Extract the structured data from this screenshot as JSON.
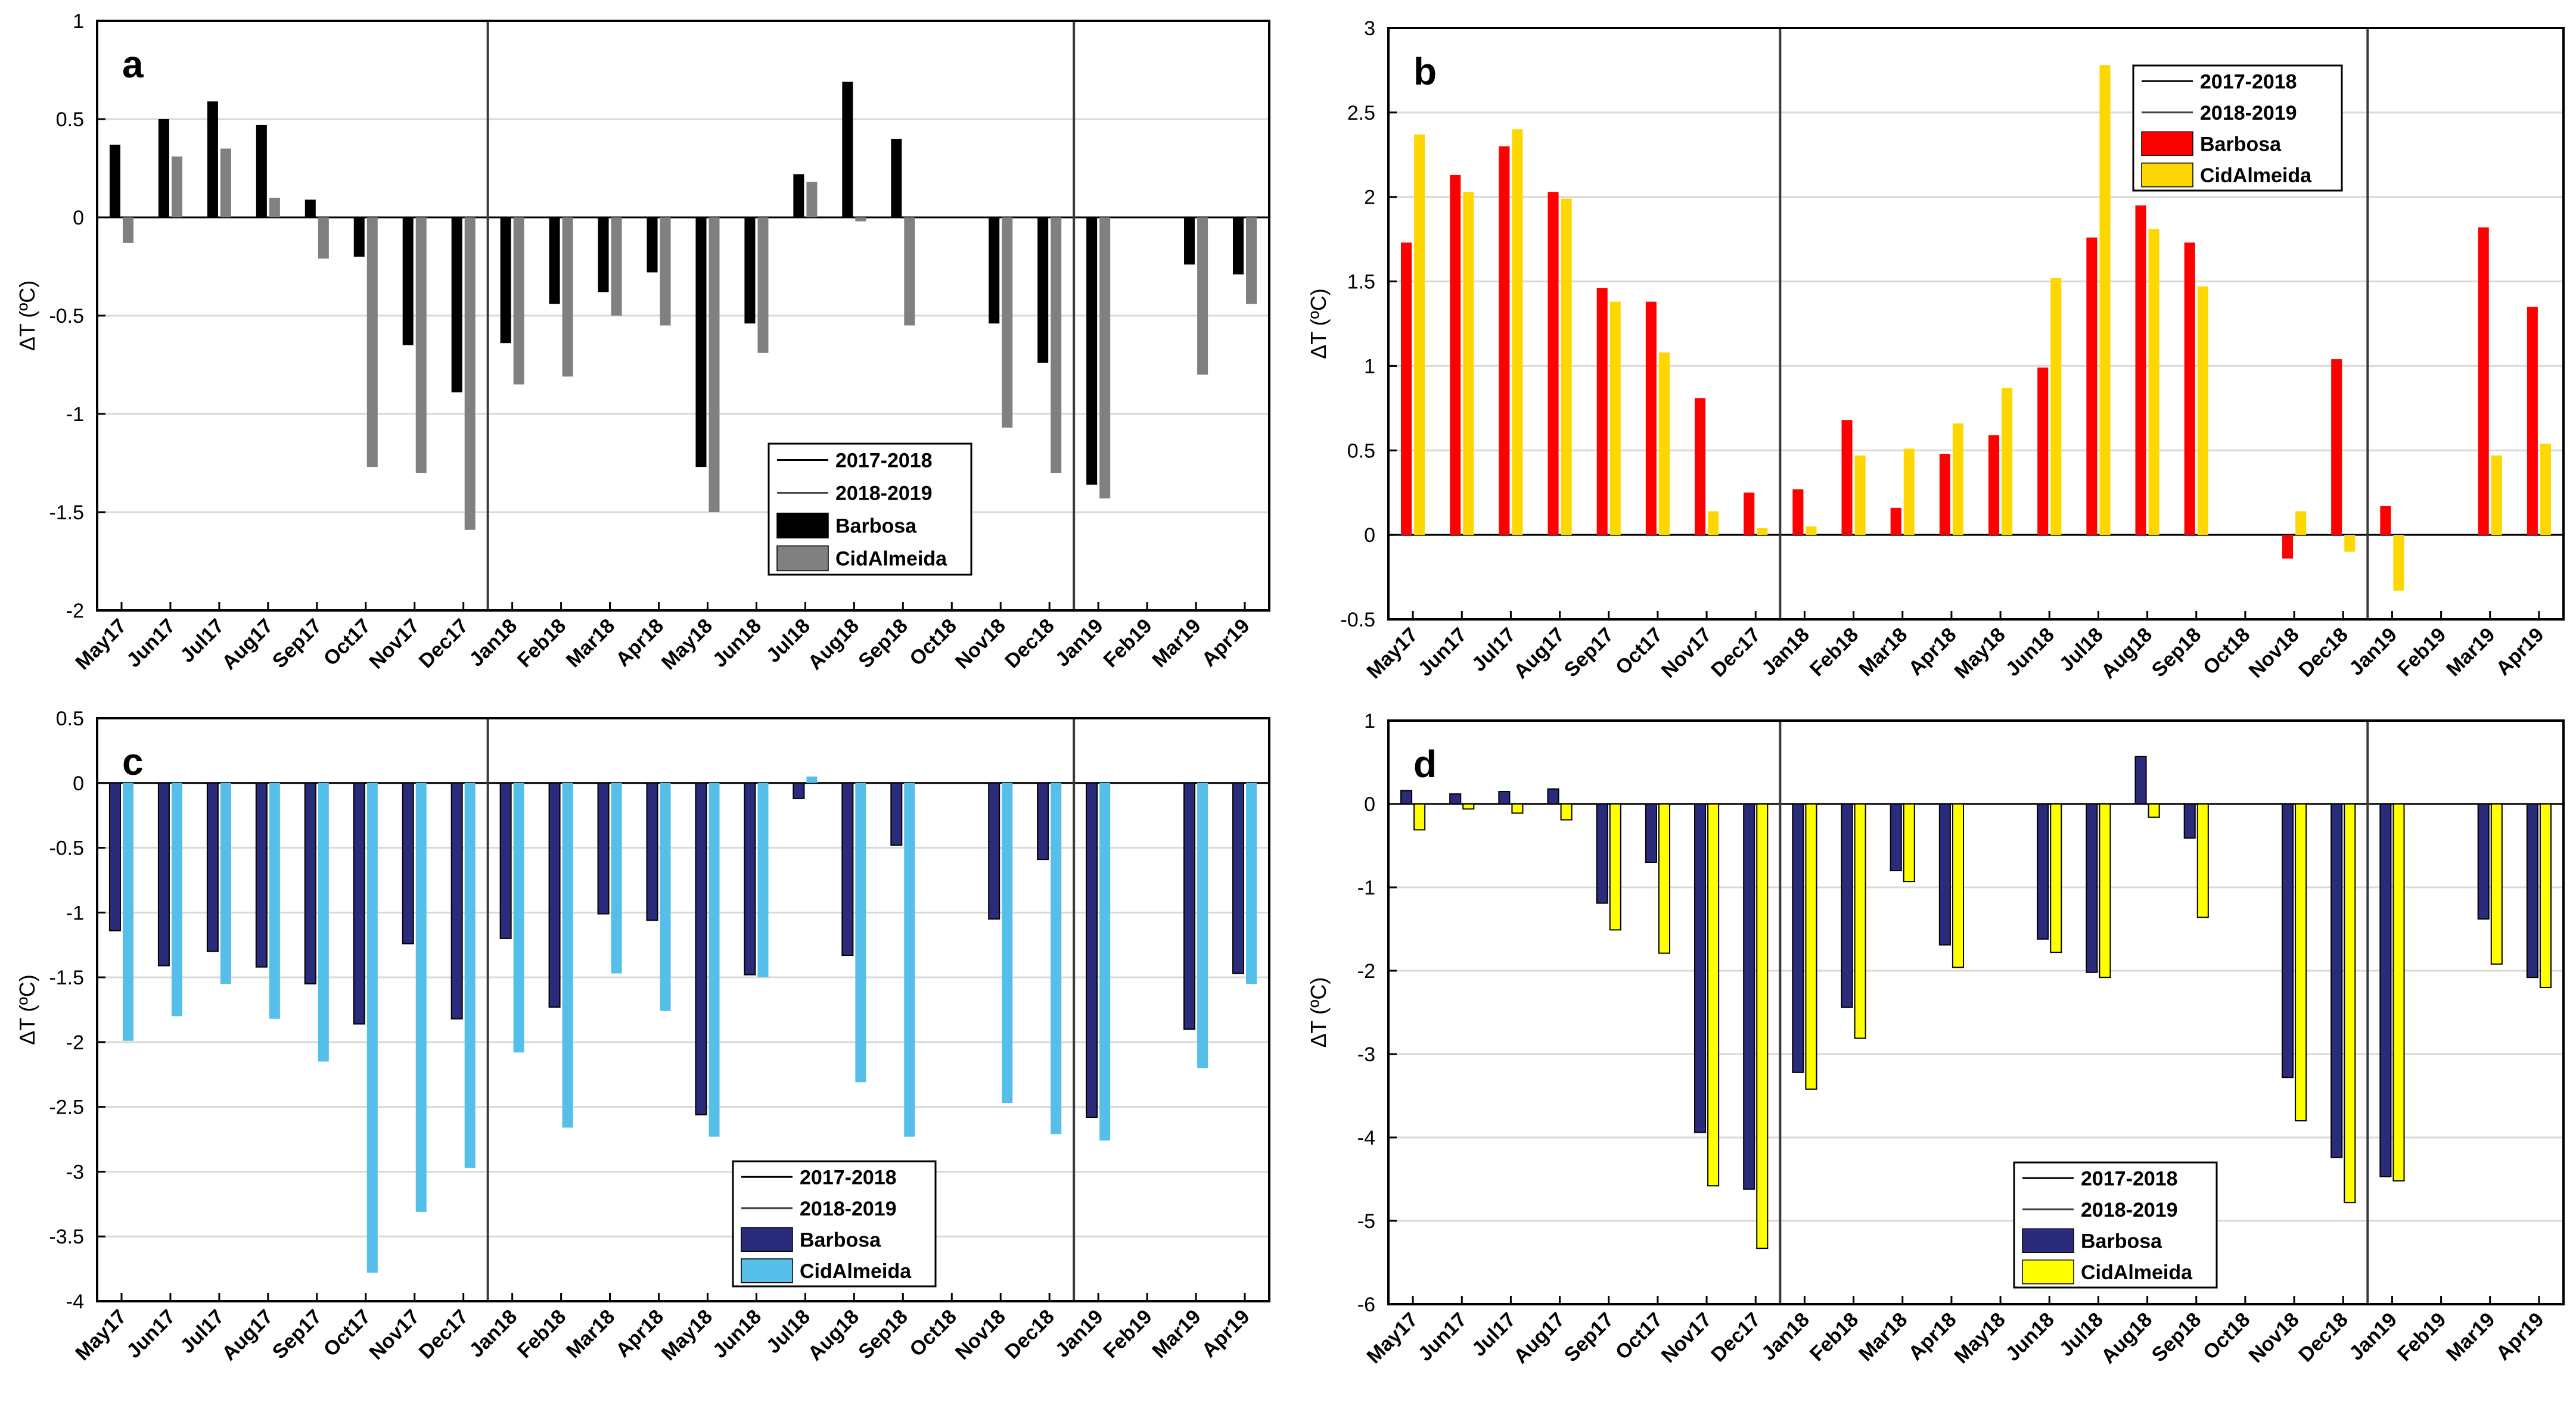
{
  "chart_data": [
    {
      "panel": "a",
      "type": "bar",
      "ylabel": "ΔT (ºC)",
      "ylim": [
        -2,
        1
      ],
      "yticks": [
        -2,
        -1.5,
        -1,
        -0.5,
        0,
        0.5,
        1
      ],
      "categories": [
        "May17",
        "Jun17",
        "Jul17",
        "Aug17",
        "Sep17",
        "Oct17",
        "Nov17",
        "Dec17",
        "Jan18",
        "Feb18",
        "Mar18",
        "Apr18",
        "May18",
        "Jun18",
        "Jul18",
        "Aug18",
        "Sep18",
        "Oct18",
        "Nov18",
        "Dec18",
        "Jan19",
        "Feb19",
        "Mar19",
        "Apr19"
      ],
      "series": [
        {
          "name": "Barbosa",
          "color": "#000000",
          "values": [
            0.37,
            0.5,
            0.59,
            0.47,
            0.09,
            -0.2,
            -0.65,
            -0.89,
            -0.64,
            -0.44,
            -0.38,
            -0.28,
            -1.27,
            -0.54,
            0.22,
            0.69,
            0.4,
            null,
            -0.54,
            -0.74,
            -1.36,
            null,
            -0.24,
            -0.29
          ]
        },
        {
          "name": "CidAlmeida",
          "color": "#808080",
          "values": [
            -0.13,
            0.31,
            0.35,
            0.1,
            -0.21,
            -1.27,
            -1.3,
            -1.59,
            -0.85,
            -0.81,
            -0.5,
            -0.55,
            -1.5,
            -0.69,
            0.18,
            -0.02,
            -0.55,
            null,
            -1.07,
            -1.3,
            -1.43,
            null,
            -0.8,
            -0.44
          ]
        }
      ],
      "legend_lines": [
        "2017-2018",
        "2018-2019"
      ],
      "legend_position": "lower-right",
      "grid": "horizontal",
      "divider_positions": [
        "Dec17|Jan18",
        "Dec18|Jan19"
      ]
    },
    {
      "panel": "b",
      "type": "bar",
      "ylabel": "ΔT (ºC)",
      "ylim": [
        -0.5,
        3
      ],
      "yticks": [
        -0.5,
        0,
        0.5,
        1,
        1.5,
        2,
        2.5,
        3
      ],
      "categories": [
        "May17",
        "Jun17",
        "Jul17",
        "Aug17",
        "Sep17",
        "Oct17",
        "Nov17",
        "Dec17",
        "Jan18",
        "Feb18",
        "Mar18",
        "Apr18",
        "May18",
        "Jun18",
        "Jul18",
        "Aug18",
        "Sep18",
        "Oct18",
        "Nov18",
        "Dec18",
        "Jan19",
        "Feb19",
        "Mar19",
        "Apr19"
      ],
      "series": [
        {
          "name": "Barbosa",
          "color": "#ff0000",
          "values": [
            1.73,
            2.13,
            2.3,
            2.03,
            1.46,
            1.38,
            0.81,
            0.25,
            0.27,
            0.68,
            0.16,
            0.48,
            0.59,
            0.99,
            1.76,
            1.95,
            1.73,
            null,
            -0.14,
            1.04,
            0.17,
            null,
            1.82,
            1.35
          ]
        },
        {
          "name": "CidAlmeida",
          "color": "#ffd700",
          "values": [
            2.37,
            2.03,
            2.4,
            1.99,
            1.38,
            1.08,
            0.14,
            0.04,
            0.05,
            0.47,
            0.51,
            0.66,
            0.87,
            1.52,
            2.78,
            1.81,
            1.47,
            null,
            0.14,
            -0.1,
            -0.33,
            null,
            0.47,
            0.54
          ]
        }
      ],
      "legend_lines": [
        "2017-2018",
        "2018-2019"
      ],
      "legend_position": "top-right",
      "grid": "horizontal",
      "divider_positions": [
        "Dec17|Jan18",
        "Dec18|Jan19"
      ]
    },
    {
      "panel": "c",
      "type": "bar",
      "ylabel": "ΔT (ºC)",
      "ylim": [
        -4,
        0.5
      ],
      "yticks": [
        -4,
        -3.5,
        -3,
        -2.5,
        -2,
        -1.5,
        -1,
        -0.5,
        0,
        0.5
      ],
      "categories": [
        "May17",
        "Jun17",
        "Jul17",
        "Aug17",
        "Sep17",
        "Oct17",
        "Nov17",
        "Dec17",
        "Jan18",
        "Feb18",
        "Mar18",
        "Apr18",
        "May18",
        "Jun18",
        "Jul18",
        "Aug18",
        "Sep18",
        "Oct18",
        "Nov18",
        "Dec18",
        "Jan19",
        "Feb19",
        "Mar19",
        "Apr19"
      ],
      "series": [
        {
          "name": "Barbosa",
          "color": "#2b2b7c",
          "values": [
            -1.14,
            -1.41,
            -1.3,
            -1.42,
            -1.55,
            -1.86,
            -1.24,
            -1.82,
            -1.2,
            -1.73,
            -1.01,
            -1.06,
            -2.56,
            -1.48,
            -0.12,
            -1.33,
            -0.48,
            null,
            -1.05,
            -0.59,
            -2.58,
            null,
            -1.9,
            -1.47
          ]
        },
        {
          "name": "CidAlmeida",
          "color": "#55bfea",
          "values": [
            -1.99,
            -1.8,
            -1.55,
            -1.82,
            -2.15,
            -3.78,
            -3.31,
            -2.97,
            -2.08,
            -2.66,
            -1.47,
            -1.76,
            -2.73,
            -1.5,
            0.05,
            -2.31,
            -2.73,
            null,
            -2.47,
            -2.71,
            -2.76,
            null,
            -2.2,
            -1.55
          ]
        }
      ],
      "legend_lines": [
        "2017-2018",
        "2018-2019"
      ],
      "legend_position": "lower-middle",
      "grid": "horizontal",
      "divider_positions": [
        "Dec17|Jan18",
        "Dec18|Jan19"
      ]
    },
    {
      "panel": "d",
      "type": "bar",
      "ylabel": "ΔT (ºC)",
      "ylim": [
        -6,
        1
      ],
      "yticks": [
        -6,
        -5,
        -4,
        -3,
        -2,
        -1,
        0,
        1
      ],
      "categories": [
        "May17",
        "Jun17",
        "Jul17",
        "Aug17",
        "Sep17",
        "Oct17",
        "Nov17",
        "Dec17",
        "Jan18",
        "Feb18",
        "Mar18",
        "Apr18",
        "May18",
        "Jun18",
        "Jul18",
        "Aug18",
        "Sep18",
        "Oct18",
        "Nov18",
        "Dec18",
        "Jan19",
        "Feb19",
        "Mar19",
        "Apr19"
      ],
      "series": [
        {
          "name": "Barbosa",
          "color": "#2b2b7c",
          "values": [
            0.16,
            0.12,
            0.15,
            0.18,
            -1.19,
            -0.7,
            -3.94,
            -4.62,
            -3.22,
            -2.44,
            -0.8,
            -1.69,
            null,
            -1.62,
            -2.02,
            0.57,
            -0.41,
            null,
            -3.28,
            -4.24,
            -4.47,
            null,
            -1.38,
            -2.08
          ]
        },
        {
          "name": "CidAlmeida",
          "color": "#ffff00",
          "values": [
            -0.31,
            -0.06,
            -0.11,
            -0.19,
            -1.51,
            -1.79,
            -4.58,
            -5.33,
            -3.42,
            -2.81,
            -0.93,
            -1.96,
            null,
            -1.78,
            -2.08,
            -0.16,
            -1.36,
            null,
            -3.8,
            -4.78,
            -4.52,
            null,
            -1.92,
            -2.2
          ]
        }
      ],
      "legend_lines": [
        "2017-2018",
        "2018-2019"
      ],
      "legend_position": "lower-middle",
      "grid": "horizontal",
      "divider_positions": [
        "Dec17|Jan18",
        "Dec18|Jan19"
      ]
    }
  ]
}
